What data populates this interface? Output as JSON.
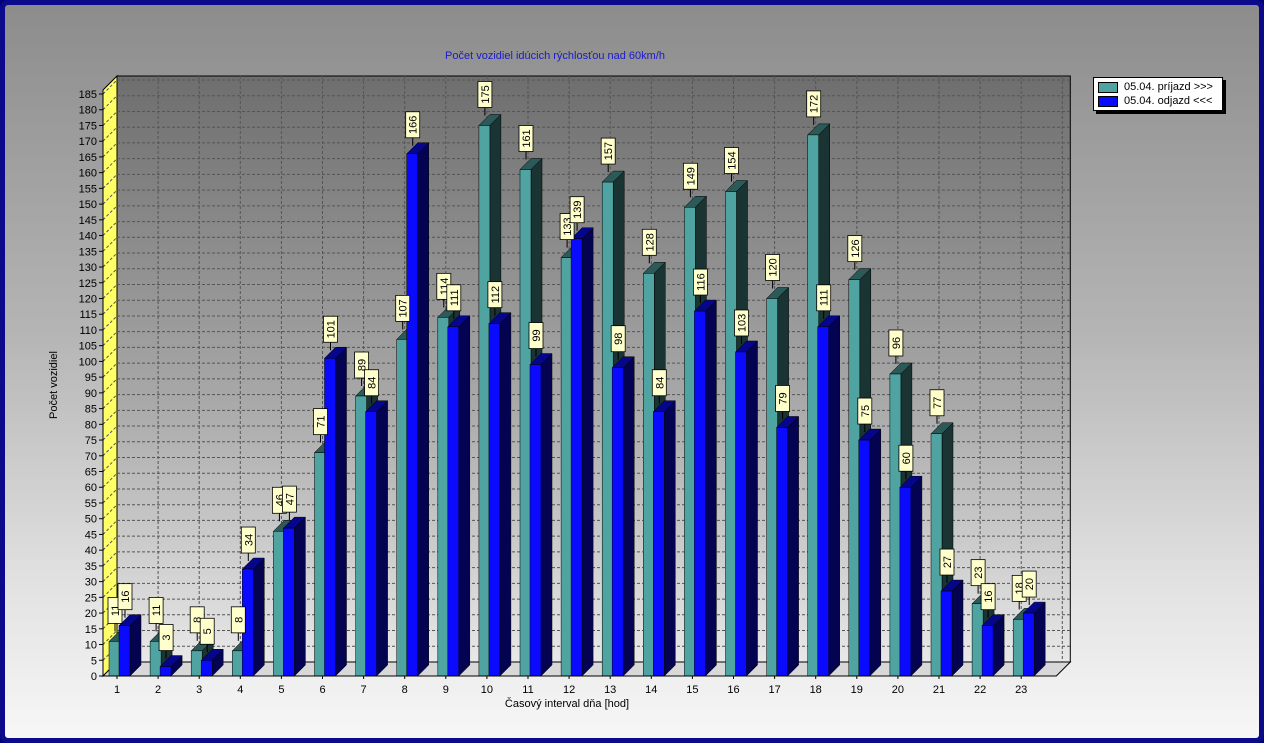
{
  "chart_data": {
    "type": "bar",
    "title": "Počet vozidiel idúcich rýchlosťou nad 60km/h",
    "xlabel": "Časový interval dňa [hod]",
    "ylabel": "Počet vozidiel",
    "ylim": [
      0,
      185
    ],
    "ytick_step": 5,
    "grid": true,
    "legend_position": "top-right",
    "categories": [
      "1",
      "2",
      "3",
      "4",
      "5",
      "6",
      "7",
      "8",
      "9",
      "10",
      "11",
      "12",
      "13",
      "14",
      "15",
      "16",
      "17",
      "18",
      "19",
      "20",
      "21",
      "22",
      "23"
    ],
    "series": [
      {
        "name": "05.04.  príjazd >>>",
        "color": "#4fa3a0",
        "values": [
          11,
          11,
          8,
          8,
          46,
          71,
          89,
          107,
          114,
          175,
          161,
          133,
          157,
          128,
          149,
          154,
          120,
          172,
          126,
          96,
          77,
          23,
          18
        ]
      },
      {
        "name": "05.04.  odjazd <<<",
        "color": "#0a0aff",
        "values": [
          16,
          3,
          5,
          34,
          47,
          101,
          84,
          166,
          111,
          112,
          99,
          139,
          98,
          84,
          116,
          103,
          79,
          111,
          75,
          60,
          27,
          16,
          20
        ]
      }
    ]
  }
}
